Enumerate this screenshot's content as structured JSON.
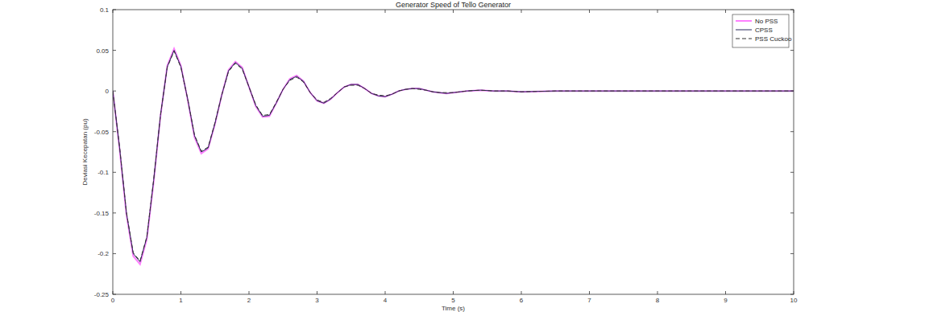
{
  "chart_data": {
    "type": "line",
    "title": "Generator Speed of Tello Generator",
    "x_label": "Time (s)",
    "y_label": "Deviasi Kecepatan (pu)",
    "x": [
      0,
      0.1,
      0.2,
      0.3,
      0.4,
      0.5,
      0.6,
      0.7,
      0.8,
      0.9,
      1.0,
      1.1,
      1.2,
      1.3,
      1.4,
      1.5,
      1.6,
      1.7,
      1.8,
      1.9,
      2.0,
      2.1,
      2.2,
      2.3,
      2.4,
      2.5,
      2.6,
      2.7,
      2.8,
      2.9,
      3.0,
      3.1,
      3.2,
      3.3,
      3.4,
      3.5,
      3.6,
      3.7,
      3.8,
      3.9,
      4.0,
      4.1,
      4.2,
      4.3,
      4.4,
      4.5,
      4.6,
      4.7,
      4.8,
      4.9,
      5.0,
      5.2,
      5.4,
      5.6,
      5.8,
      6.0,
      6.5,
      7,
      8,
      9,
      10
    ],
    "series": [
      {
        "name": "No PSS",
        "color": "#ff80ff",
        "line_style": "solid",
        "values": [
          0,
          -0.072,
          -0.152,
          -0.203,
          -0.213,
          -0.182,
          -0.112,
          -0.031,
          0.031,
          0.052,
          0.031,
          -0.011,
          -0.057,
          -0.077,
          -0.071,
          -0.041,
          -0.005,
          0.026,
          0.036,
          0.029,
          0.005,
          -0.019,
          -0.032,
          -0.031,
          -0.015,
          0.002,
          0.015,
          0.019,
          0.012,
          -0.002,
          -0.012,
          -0.015,
          -0.01,
          -0.002,
          0.005,
          0.008,
          0.008,
          0.003,
          -0.003,
          -0.006,
          -0.007,
          -0.004,
          0,
          0.002,
          0.003,
          0.003,
          0.001,
          -0.001,
          -0.002,
          -0.003,
          -0.002,
          0,
          0.001,
          0,
          0,
          -0.001,
          0,
          0,
          0,
          0,
          0
        ]
      },
      {
        "name": "CPSS",
        "color": "#2b2b5e",
        "line_style": "solid",
        "values": [
          0,
          -0.07,
          -0.15,
          -0.2,
          -0.21,
          -0.18,
          -0.11,
          -0.03,
          0.03,
          0.05,
          0.03,
          -0.01,
          -0.055,
          -0.075,
          -0.07,
          -0.04,
          -0.005,
          0.025,
          0.035,
          0.028,
          0.005,
          -0.018,
          -0.031,
          -0.03,
          -0.015,
          0.002,
          0.014,
          0.018,
          0.012,
          -0.002,
          -0.012,
          -0.015,
          -0.01,
          -0.002,
          0.005,
          0.008,
          0.008,
          0.003,
          -0.003,
          -0.006,
          -0.007,
          -0.004,
          0,
          0.002,
          0.003,
          0.003,
          0.001,
          -0.001,
          -0.002,
          -0.003,
          -0.002,
          0,
          0.001,
          0,
          0,
          -0.001,
          0,
          0,
          0,
          0,
          0
        ]
      },
      {
        "name": "PSS Cuckoo",
        "color": "#333333",
        "line_style": "dashed",
        "values": [
          0,
          -0.069,
          -0.149,
          -0.199,
          -0.209,
          -0.179,
          -0.109,
          -0.03,
          0.029,
          0.049,
          0.029,
          -0.01,
          -0.054,
          -0.074,
          -0.069,
          -0.039,
          -0.005,
          0.024,
          0.034,
          0.027,
          0.005,
          -0.017,
          -0.03,
          -0.029,
          -0.014,
          0.002,
          0.013,
          0.017,
          0.011,
          -0.002,
          -0.011,
          -0.014,
          -0.009,
          -0.002,
          0.005,
          0.007,
          0.007,
          0.003,
          -0.003,
          -0.005,
          -0.006,
          -0.004,
          0,
          0.002,
          0.003,
          0.002,
          0.001,
          -0.001,
          -0.002,
          -0.002,
          -0.002,
          0,
          0.001,
          0,
          0,
          -0.001,
          0,
          0,
          0,
          0,
          0
        ]
      }
    ],
    "xlim": [
      0,
      10
    ],
    "xticks": [
      0,
      1,
      2,
      3,
      4,
      5,
      6,
      7,
      8,
      9,
      10
    ],
    "ylim": [
      -0.25,
      0.1
    ],
    "yticks": [
      -0.25,
      -0.2,
      -0.15,
      -0.1,
      -0.05,
      0,
      0.05,
      0.1
    ],
    "grid": false,
    "legend": "northeast"
  }
}
